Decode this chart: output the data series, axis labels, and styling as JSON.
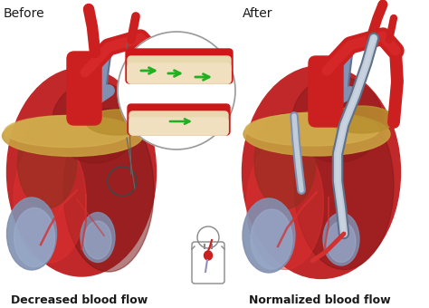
{
  "background_color": "#ffffff",
  "title_before": "Before",
  "title_after": "After",
  "label_before": "Decreased blood flow",
  "label_after": "Normalized blood flow",
  "title_fontsize": 10,
  "label_fontsize": 9,
  "fig_width": 4.74,
  "fig_height": 3.4,
  "dpi": 100,
  "heart_red": "#c0282a",
  "heart_red_dark": "#8b1a1a",
  "heart_red_bright": "#e03030",
  "heart_red_mid": "#a82020",
  "aorta_red": "#cc2020",
  "blue_grey": "#8090b0",
  "blue_grey2": "#9aabcc",
  "blue_dark": "#607090",
  "fat_gold": "#c8a040",
  "fat_gold2": "#b89030",
  "fat_gold3": "#d4b050",
  "muscle_dark": "#7a1818",
  "muscle_brown": "#8c3020",
  "skin_pink": "#e8c0a0",
  "bypass_grey": "#a0b0c8",
  "bypass_grey2": "#c0ccd8",
  "vessel_line": "#cc1818",
  "coronary_line": "#d43030",
  "plaque_cream": "#e8d8b0",
  "plaque_cream2": "#f0e0c0",
  "arrow_green": "#20b020",
  "inset_bg": "#f5f0e8",
  "text_color": "#1a1a1a",
  "outline_dark": "#2a1a1a",
  "body_outline": "#888888"
}
